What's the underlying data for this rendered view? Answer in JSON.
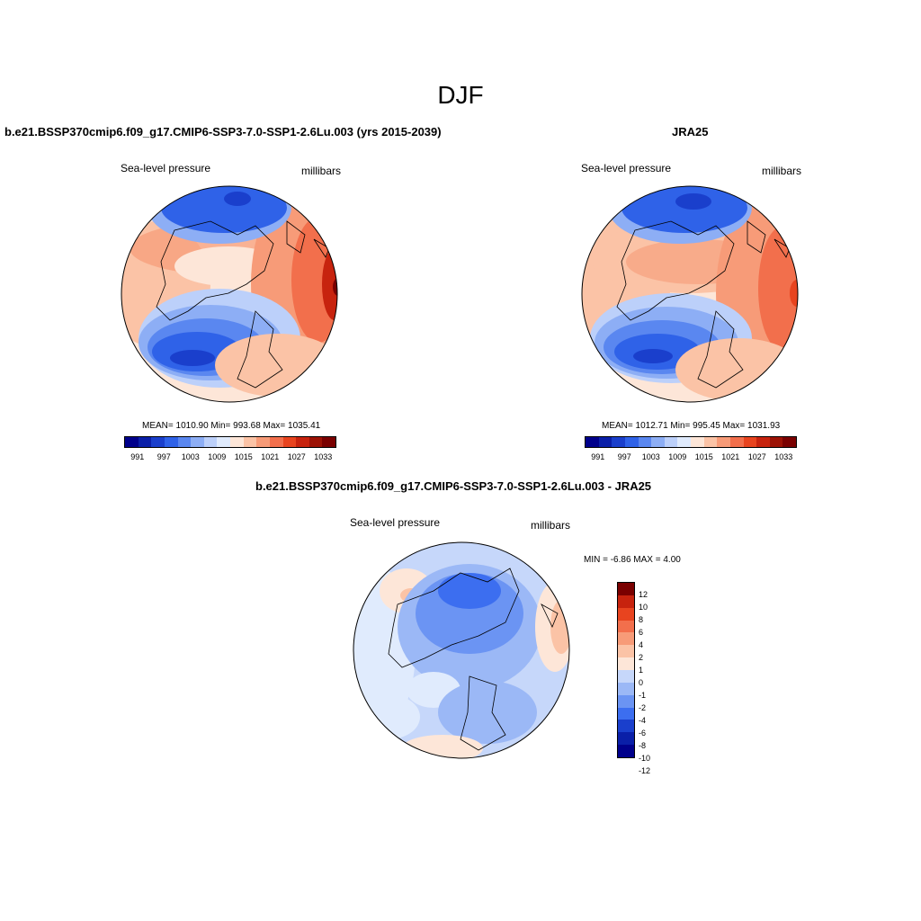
{
  "figure": {
    "title": "DJF"
  },
  "panels": {
    "model": {
      "title": "b.e21.BSSP370cmip6.f09_g17.CMIP6-SSP3-7.0-SSP1-2.6Lu.003 (yrs 2015-2039)",
      "variable": "Sea-level pressure",
      "units": "millibars",
      "stats": "MEAN= 1010.90  Min= 993.68  Max= 1035.41",
      "mean": 1010.9,
      "min": 993.68,
      "max": 1035.41
    },
    "obs": {
      "title": "JRA25",
      "variable": "Sea-level pressure",
      "units": "millibars",
      "stats": "MEAN= 1012.71  Min= 995.45  Max= 1031.93",
      "mean": 1012.71,
      "min": 995.45,
      "max": 1031.93
    },
    "diff": {
      "title": "b.e21.BSSP370cmip6.f09_g17.CMIP6-SSP3-7.0-SSP1-2.6Lu.003 - JRA25",
      "variable": "Sea-level pressure",
      "units": "millibars",
      "stats": "MIN =  -6.86 MAX =   4.00",
      "min": -6.86,
      "max": 4.0
    }
  },
  "colorbar_abs": {
    "colors": [
      "#00008b",
      "#0a1fa8",
      "#1a3fcc",
      "#2f62e8",
      "#5a87f0",
      "#8daef5",
      "#bcd0fa",
      "#e0ebfd",
      "#fde6d8",
      "#fbc3a6",
      "#f79b78",
      "#f26f4c",
      "#e8441f",
      "#c7230e",
      "#9c1205",
      "#7a0000"
    ],
    "tick_labels": [
      "991",
      "997",
      "1003",
      "1009",
      "1015",
      "1021",
      "1027",
      "1033"
    ]
  },
  "colorbar_diff": {
    "colors": [
      "#00008b",
      "#0a1fa8",
      "#1a3fcc",
      "#3c6ef0",
      "#6b94f3",
      "#9bb8f6",
      "#c6d7fa",
      "#fde6d8",
      "#fbc3a6",
      "#f79b78",
      "#f26f4c",
      "#e8441f",
      "#c7230e",
      "#7a0000"
    ],
    "tick_labels": [
      "12",
      "10",
      "8",
      "6",
      "4",
      "2",
      "1",
      "0",
      "-1",
      "-2",
      "-4",
      "-6",
      "-8",
      "-10",
      "-12"
    ]
  }
}
